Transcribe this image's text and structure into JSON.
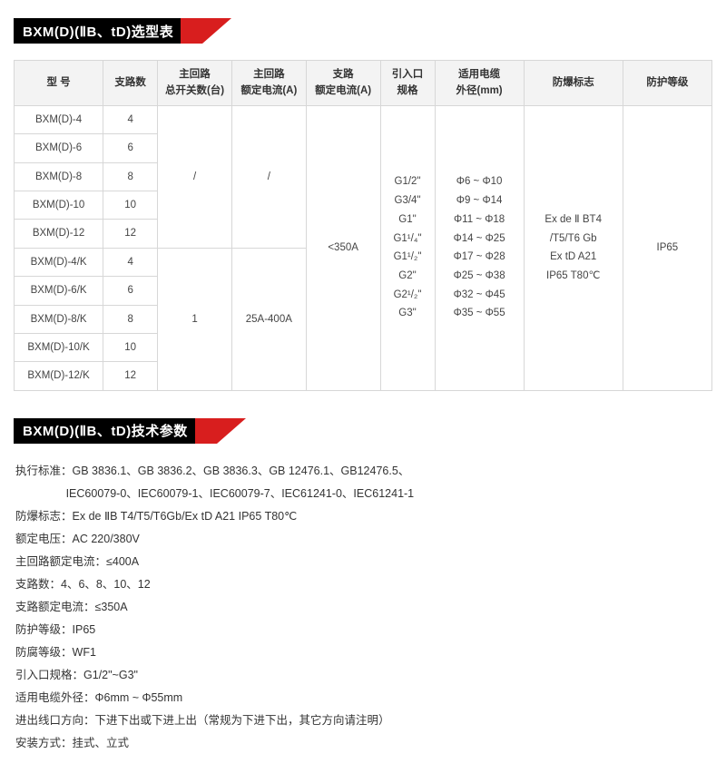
{
  "selection_table": {
    "title": "BXM(D)(ⅡB、tD)选型表",
    "headers": {
      "model": "型 号",
      "branches": "支路数",
      "switch_count": "主回路\n总开关数(台)",
      "main_current": "主回路\n额定电流(A)",
      "branch_current": "支路\n额定电流(A)",
      "inlet_spec": "引入口\n规格",
      "cable_od": "适用电缆\n外径(mm)",
      "ex_mark": "防爆标志",
      "ip_grade": "防护等级"
    },
    "group1": {
      "switch_count": "/",
      "main_current": "/",
      "rows": [
        {
          "model": "BXM(D)-4",
          "branches": "4"
        },
        {
          "model": "BXM(D)-6",
          "branches": "6"
        },
        {
          "model": "BXM(D)-8",
          "branches": "8"
        },
        {
          "model": "BXM(D)-10",
          "branches": "10"
        },
        {
          "model": "BXM(D)-12",
          "branches": "12"
        }
      ]
    },
    "group2": {
      "switch_count": "1",
      "main_current": "25A-400A",
      "rows": [
        {
          "model": "BXM(D)-4/K",
          "branches": "4"
        },
        {
          "model": "BXM(D)-6/K",
          "branches": "6"
        },
        {
          "model": "BXM(D)-8/K",
          "branches": "8"
        },
        {
          "model": "BXM(D)-10/K",
          "branches": "10"
        },
        {
          "model": "BXM(D)-12/K",
          "branches": "12"
        }
      ]
    },
    "shared": {
      "branch_current": "<350A",
      "inlet_lines": [
        "G1/2\"",
        "G3/4\"",
        "G1\"",
        "G1¹/₄\"",
        "G1¹/₂\"",
        "G2\"",
        "G2¹/₂\"",
        "G3\""
      ],
      "cable_lines": [
        "Φ6 ~ Φ10",
        "Φ9 ~ Φ14",
        "Φ11 ~ Φ18",
        "Φ14 ~ Φ25",
        "Φ17 ~ Φ28",
        "Φ25 ~ Φ38",
        "Φ32 ~ Φ45",
        "Φ35 ~ Φ55"
      ],
      "ex_lines": [
        "Ex de Ⅱ BT4",
        "/T5/T6 Gb",
        "Ex  tD A21",
        "IP65 T80℃"
      ],
      "ip_grade": "IP65"
    }
  },
  "tech_params": {
    "title": "BXM(D)(ⅡB、tD)技术参数",
    "rows": [
      {
        "label": "执行标准：",
        "value": "GB 3836.1、GB 3836.2、GB 3836.3、GB 12476.1、GB12476.5、"
      },
      {
        "label": "",
        "value": "IEC60079-0、IEC60079-1、IEC60079-7、IEC61241-0、IEC61241-1",
        "indent": true
      },
      {
        "label": "防爆标志：",
        "value": "Ex de ⅡB  T4/T5/T6Gb/Ex tD A21 IP65 T80℃"
      },
      {
        "label": "额定电压：",
        "value": "AC 220/380V"
      },
      {
        "label": "主回路额定电流：",
        "value": "≤400A"
      },
      {
        "label": "支路数：",
        "value": "4、6、8、10、12"
      },
      {
        "label": "支路额定电流：",
        "value": "≤350A"
      },
      {
        "label": "防护等级：",
        "value": "IP65"
      },
      {
        "label": "防腐等级：",
        "value": "WF1"
      },
      {
        "label": "引入口规格：",
        "value": "G1/2\"~G3\""
      },
      {
        "label": "适用电缆外径：",
        "value": "Φ6mm ~ Φ55mm"
      },
      {
        "label": "进出线口方向：",
        "value": "下进下出或下进上出（常规为下进下出，其它方向请注明）"
      },
      {
        "label": "安装方式：",
        "value": "挂式、立式"
      }
    ]
  },
  "colors": {
    "header_black": "#000000",
    "header_red": "#d81e1e",
    "border": "#d7d7d7",
    "th_bg": "#f3f3f3"
  }
}
